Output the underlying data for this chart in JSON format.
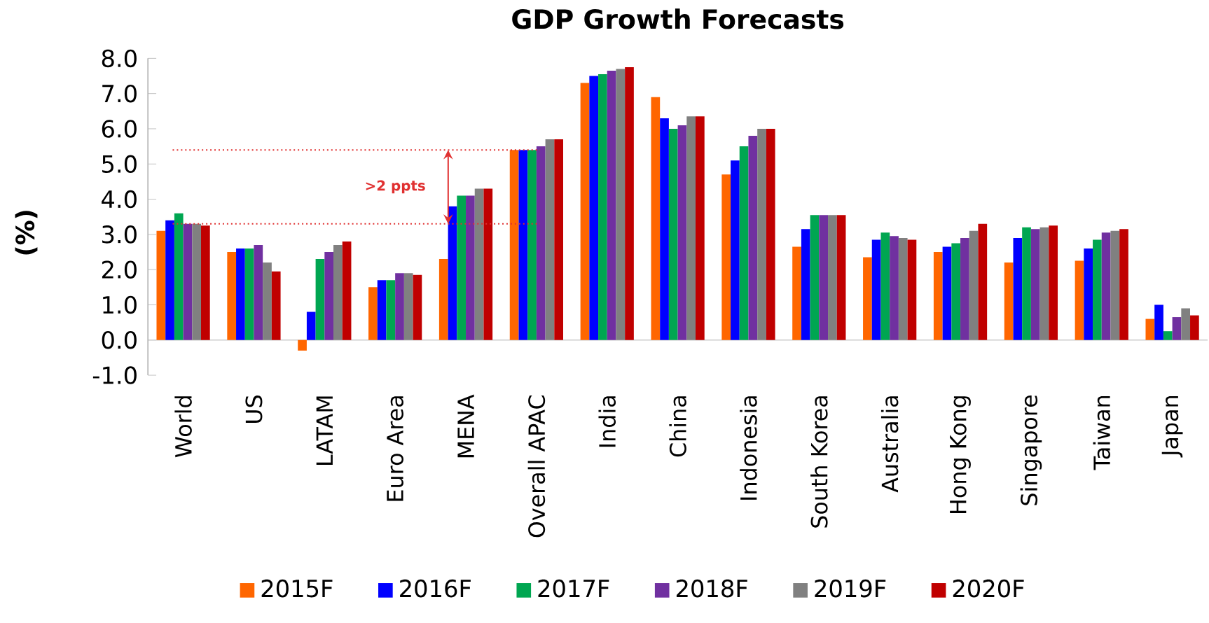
{
  "chart_data": {
    "type": "bar",
    "title": "GDP Growth Forecasts",
    "ylabel": "(%)",
    "categories": [
      "World",
      "US",
      "LATAM",
      "Euro Area",
      "MENA",
      "Overall APAC",
      "India",
      "China",
      "Indonesia",
      "South Korea",
      "Australia",
      "Hong Kong",
      "Singapore",
      "Taiwan",
      "Japan"
    ],
    "series": [
      {
        "name": "2015F",
        "color": "#ff6600",
        "values": [
          3.1,
          2.5,
          -0.3,
          1.5,
          2.3,
          5.4,
          7.3,
          6.9,
          4.7,
          2.65,
          2.35,
          2.5,
          2.2,
          2.25,
          0.6
        ]
      },
      {
        "name": "2016F",
        "color": "#0000ff",
        "values": [
          3.4,
          2.6,
          0.8,
          1.7,
          3.8,
          5.4,
          7.5,
          6.3,
          5.1,
          3.15,
          2.85,
          2.65,
          2.9,
          2.6,
          1.0
        ]
      },
      {
        "name": "2017F",
        "color": "#00a651",
        "values": [
          3.6,
          2.6,
          2.3,
          1.7,
          4.1,
          5.4,
          7.55,
          6.0,
          5.5,
          3.55,
          3.05,
          2.75,
          3.2,
          2.85,
          0.25
        ]
      },
      {
        "name": "2018F",
        "color": "#7030a0",
        "values": [
          3.3,
          2.7,
          2.5,
          1.9,
          4.1,
          5.5,
          7.65,
          6.1,
          5.8,
          3.55,
          2.95,
          2.9,
          3.15,
          3.05,
          0.65
        ]
      },
      {
        "name": "2019F",
        "color": "#808080",
        "values": [
          3.3,
          2.2,
          2.7,
          1.9,
          4.3,
          5.7,
          7.7,
          6.35,
          6.0,
          3.55,
          2.9,
          3.1,
          3.2,
          3.1,
          0.9
        ]
      },
      {
        "name": "2020F",
        "color": "#c00000",
        "values": [
          3.25,
          1.95,
          2.8,
          1.85,
          4.3,
          5.7,
          7.75,
          6.35,
          6.0,
          3.55,
          2.85,
          3.3,
          3.25,
          3.15,
          0.7
        ]
      }
    ],
    "ylim": [
      -1,
      8
    ],
    "yticks": [
      {
        "value": -1,
        "label": "-1.0"
      },
      {
        "value": 0,
        "label": "0.0"
      },
      {
        "value": 1,
        "label": "1.0"
      },
      {
        "value": 2,
        "label": "2.0"
      },
      {
        "value": 3,
        "label": "3.0"
      },
      {
        "value": 4,
        "label": "4.0"
      },
      {
        "value": 5,
        "label": "5.0"
      },
      {
        "value": 6,
        "label": "6.0"
      },
      {
        "value": 7,
        "label": "7.0"
      },
      {
        "value": 8,
        "label": "8.0"
      }
    ],
    "ref_lines": [
      {
        "axis": "y",
        "value": 5.4,
        "color": "#e03030",
        "line_style": "dotted"
      },
      {
        "axis": "y",
        "value": 3.3,
        "color": "#e03030",
        "line_style": "dotted"
      }
    ],
    "annotations": [
      ">2 ppts"
    ],
    "grid": false,
    "legend": "bottom"
  }
}
